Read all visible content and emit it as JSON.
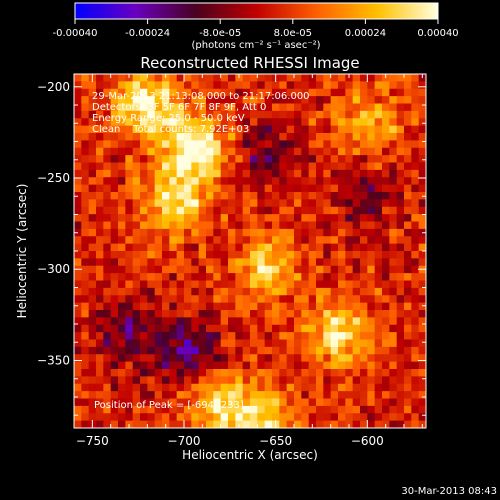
{
  "chart_data": {
    "type": "heatmap",
    "title": "Reconstructed RHESSI Image",
    "xlabel": "Heliocentric X (arcsec)",
    "ylabel": "Heliocentric Y (arcsec)",
    "xlim": [
      -760,
      -568
    ],
    "ylim": [
      -387,
      -193
    ],
    "x_ticks": [
      -750,
      -700,
      -650,
      -600
    ],
    "y_ticks": [
      -350,
      -300,
      -250,
      -200
    ],
    "colorbar": {
      "range": [
        -0.0004,
        0.0004
      ],
      "ticks": [
        -0.0004,
        -0.00024,
        -8e-05,
        8e-05,
        0.00024,
        0.0004
      ],
      "tick_labels": [
        "-0.00040",
        "-0.00024",
        "-8.0e-05",
        "8.0e-05",
        "0.00024",
        "0.00040"
      ],
      "label": "(photons cm⁻² s⁻¹ asec⁻²)"
    },
    "info_lines": [
      "29-Mar-2013 21:13:08.000 to 21:17:06.000",
      "Detectors: 3F 5F 6F 7F 8F 9F, Att 0",
      "Energy Range: 25.0 - 50.0 keV",
      "Clean    Total counts: 7.92E+03"
    ],
    "peak_label": "Position of Peak = [-694,-233]",
    "peak_position": [
      -694,
      -233
    ],
    "bright_regions": [
      {
        "x": -694,
        "y": -233,
        "value": 0.0004
      },
      {
        "x": -720,
        "y": -210,
        "value": 0.00035
      },
      {
        "x": -705,
        "y": -262,
        "value": 0.0003
      },
      {
        "x": -655,
        "y": -300,
        "value": 0.00026
      },
      {
        "x": -615,
        "y": -335,
        "value": 0.0003
      },
      {
        "x": -655,
        "y": -382,
        "value": 0.00025
      },
      {
        "x": -680,
        "y": -375,
        "value": 0.00028
      },
      {
        "x": -600,
        "y": -220,
        "value": 0.00022
      }
    ],
    "dim_regions": [
      {
        "x": -698,
        "y": -345,
        "value": -0.00025
      },
      {
        "x": -730,
        "y": -335,
        "value": -0.0002
      },
      {
        "x": -655,
        "y": -237,
        "value": -0.00018
      },
      {
        "x": -600,
        "y": -260,
        "value": -0.00015
      }
    ]
  },
  "timestamp": "30-Mar-2013 08:43",
  "colors": {
    "background": "#000000",
    "foreground": "#ffffff",
    "colormap": [
      "#0000ff",
      "#6a00c0",
      "#4a0020",
      "#c00000",
      "#ff6000",
      "#ffc000",
      "#ffffe0"
    ]
  }
}
